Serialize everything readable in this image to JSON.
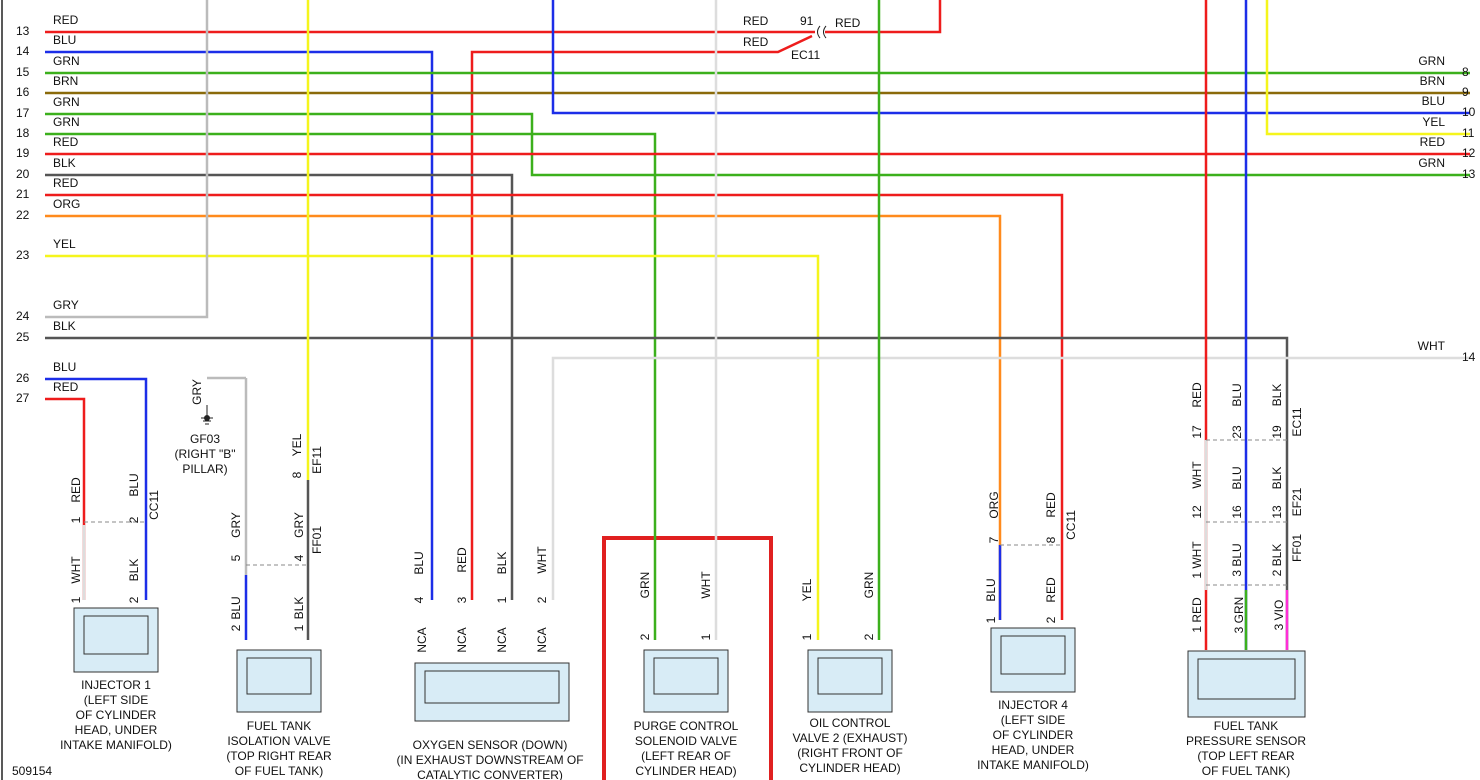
{
  "left_wires": [
    [
      "13",
      "RED"
    ],
    [
      "14",
      "BLU"
    ],
    [
      "15",
      "GRN"
    ],
    [
      "16",
      "BRN"
    ],
    [
      "17",
      "GRN"
    ],
    [
      "18",
      "GRN"
    ],
    [
      "19",
      "RED"
    ],
    [
      "20",
      "BLK"
    ],
    [
      "21",
      "RED"
    ],
    [
      "22",
      "ORG"
    ],
    [
      "23",
      "YEL"
    ],
    [
      "24",
      "GRY"
    ],
    [
      "25",
      "BLK"
    ],
    [
      "26",
      "BLU"
    ],
    [
      "27",
      "RED"
    ]
  ],
  "right_wires": [
    [
      "GRN",
      "8"
    ],
    [
      "BRN",
      "9"
    ],
    [
      "BLU",
      "10"
    ],
    [
      "YEL",
      "11"
    ],
    [
      "RED",
      "12"
    ],
    [
      "GRN",
      "13"
    ],
    [
      "WHT",
      "14"
    ]
  ],
  "splice_labels": [
    "RED",
    "91",
    "RED",
    "RED",
    "EC11"
  ],
  "ground": {
    "wire": "GRY",
    "id": "GF03",
    "lines": [
      "(RIGHT \"B\"",
      "PILLAR)"
    ]
  },
  "components": [
    {
      "lines": [
        "INJECTOR 1",
        "(LEFT SIDE",
        "OF CYLINDER",
        "HEAD, UNDER",
        "INTAKE MANIFOLD)"
      ]
    },
    {
      "lines": [
        "FUEL TANK",
        "ISOLATION VALVE",
        "(TOP RIGHT REAR",
        "OF FUEL TANK)"
      ]
    },
    {
      "lines": [
        "OXYGEN SENSOR (DOWN)",
        "(IN EXHAUST DOWNSTREAM OF",
        "CATALYTIC CONVERTER)"
      ]
    },
    {
      "lines": [
        "PURGE CONTROL",
        "SOLENOID VALVE",
        "(LEFT REAR OF",
        "CYLINDER HEAD)"
      ]
    },
    {
      "lines": [
        "OIL CONTROL",
        "VALVE 2 (EXHAUST)",
        "(RIGHT FRONT OF",
        "CYLINDER HEAD)"
      ]
    },
    {
      "lines": [
        "INJECTOR 4",
        "(LEFT SIDE",
        "OF CYLINDER",
        "HEAD, UNDER",
        "INTAKE MANIFOLD)"
      ]
    },
    {
      "lines": [
        "FUEL TANK",
        "PRESSURE SENSOR",
        "(TOP LEFT REAR",
        "OF FUEL TANK)"
      ]
    }
  ],
  "pin_labels": [
    "RED",
    "1",
    "BLU",
    "2",
    "CC11",
    "WHT",
    "BLK",
    "1",
    "2",
    "GRY",
    "5",
    "GRY",
    "4",
    "FF01",
    "YEL",
    "8",
    "EF11",
    "BLU",
    "2",
    "BLK",
    "1",
    "BLU",
    "4",
    "RED",
    "3",
    "BLK",
    "1",
    "WHT",
    "2",
    "NCA",
    "NCA",
    "NCA",
    "NCA",
    "GRN",
    "2",
    "WHT",
    "1",
    "YEL",
    "1",
    "GRN",
    "2",
    "ORG",
    "7",
    "RED",
    "8",
    "CC11",
    "BLU",
    "1",
    "RED",
    "2",
    "RED",
    "BLU",
    "BLK",
    "17",
    "23",
    "19",
    "EC11",
    "WHT",
    "BLU",
    "BLK",
    "12",
    "16",
    "13",
    "EF21",
    "1 WHT",
    "3 BLU",
    "2 BLK",
    "FF01",
    "1 RED",
    "3 GRN",
    "3 VIO"
  ],
  "figure_id": "509154"
}
